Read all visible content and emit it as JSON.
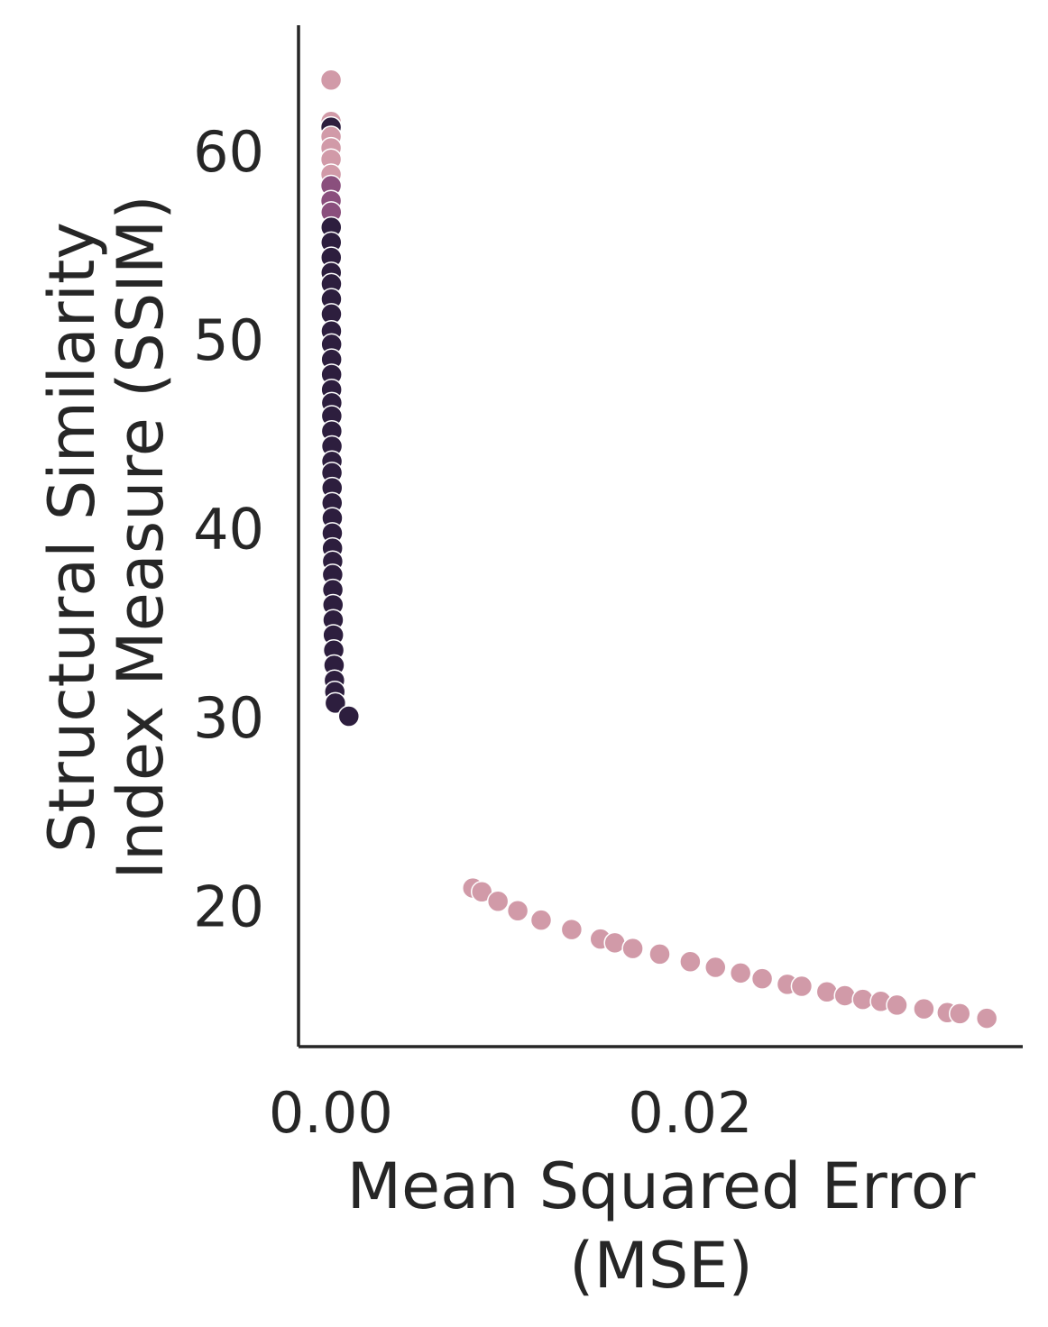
{
  "chart_data": {
    "type": "scatter",
    "title": "",
    "xlabel_lines": [
      "Mean Squared Error",
      "(MSE)"
    ],
    "ylabel_lines": [
      "Structural Similarity",
      "Index Measure (SSIM)"
    ],
    "xlim": [
      -0.0018,
      0.0385
    ],
    "ylim": [
      12.6,
      66.7
    ],
    "x_ticks": [
      0.0,
      0.02
    ],
    "x_tick_labels": [
      "0.00",
      "0.02"
    ],
    "y_ticks": [
      20,
      30,
      40,
      50,
      60
    ],
    "y_tick_labels": [
      "20",
      "30",
      "40",
      "50",
      "60"
    ],
    "grid": false,
    "legend": "none",
    "colors": {
      "light": "#d19aa8",
      "mid": "#8a4f7d",
      "dark": "#2d1e3e",
      "axis": "#262626"
    },
    "series": [
      {
        "color_key": "dark-to-light",
        "points": [
          {
            "x": 1e-05,
            "y": 63.8,
            "c": "light"
          },
          {
            "x": 1e-05,
            "y": 61.6,
            "c": "light"
          },
          {
            "x": 1e-05,
            "y": 61.3,
            "c": "dark"
          },
          {
            "x": 1e-05,
            "y": 60.8,
            "c": "light"
          },
          {
            "x": 1e-05,
            "y": 60.2,
            "c": "light"
          },
          {
            "x": 1e-05,
            "y": 59.6,
            "c": "light"
          },
          {
            "x": 1e-05,
            "y": 58.8,
            "c": "light"
          },
          {
            "x": 1e-05,
            "y": 58.2,
            "c": "mid"
          },
          {
            "x": 1e-05,
            "y": 57.4,
            "c": "mid"
          },
          {
            "x": 2e-05,
            "y": 56.8,
            "c": "mid"
          },
          {
            "x": 2e-05,
            "y": 56.0,
            "c": "dark"
          },
          {
            "x": 2e-05,
            "y": 55.2,
            "c": "dark"
          },
          {
            "x": 2e-05,
            "y": 54.4,
            "c": "dark"
          },
          {
            "x": 2e-05,
            "y": 53.6,
            "c": "dark"
          },
          {
            "x": 3e-05,
            "y": 53.0,
            "c": "dark"
          },
          {
            "x": 3e-05,
            "y": 52.2,
            "c": "dark"
          },
          {
            "x": 3e-05,
            "y": 51.4,
            "c": "dark"
          },
          {
            "x": 3e-05,
            "y": 50.5,
            "c": "dark"
          },
          {
            "x": 4e-05,
            "y": 49.8,
            "c": "dark"
          },
          {
            "x": 4e-05,
            "y": 49.0,
            "c": "dark"
          },
          {
            "x": 4e-05,
            "y": 48.2,
            "c": "dark"
          },
          {
            "x": 4e-05,
            "y": 47.4,
            "c": "dark"
          },
          {
            "x": 5e-05,
            "y": 46.7,
            "c": "dark"
          },
          {
            "x": 5e-05,
            "y": 46.0,
            "c": "dark"
          },
          {
            "x": 5e-05,
            "y": 45.2,
            "c": "dark"
          },
          {
            "x": 6e-05,
            "y": 44.4,
            "c": "dark"
          },
          {
            "x": 6e-05,
            "y": 43.6,
            "c": "dark"
          },
          {
            "x": 6e-05,
            "y": 43.0,
            "c": "dark"
          },
          {
            "x": 7e-05,
            "y": 42.2,
            "c": "dark"
          },
          {
            "x": 7e-05,
            "y": 41.4,
            "c": "dark"
          },
          {
            "x": 8e-05,
            "y": 40.6,
            "c": "dark"
          },
          {
            "x": 8e-05,
            "y": 39.8,
            "c": "dark"
          },
          {
            "x": 9e-05,
            "y": 39.0,
            "c": "dark"
          },
          {
            "x": 0.0001,
            "y": 38.3,
            "c": "dark"
          },
          {
            "x": 0.0001,
            "y": 37.6,
            "c": "dark"
          },
          {
            "x": 0.00011,
            "y": 36.8,
            "c": "dark"
          },
          {
            "x": 0.00012,
            "y": 36.0,
            "c": "dark"
          },
          {
            "x": 0.00013,
            "y": 35.2,
            "c": "dark"
          },
          {
            "x": 0.00014,
            "y": 34.4,
            "c": "dark"
          },
          {
            "x": 0.00016,
            "y": 33.6,
            "c": "dark"
          },
          {
            "x": 0.00018,
            "y": 32.8,
            "c": "dark"
          },
          {
            "x": 0.0002,
            "y": 32.0,
            "c": "dark"
          },
          {
            "x": 0.00022,
            "y": 31.4,
            "c": "dark"
          },
          {
            "x": 0.00025,
            "y": 30.8,
            "c": "dark"
          },
          {
            "x": 0.001,
            "y": 30.1,
            "c": "dark"
          },
          {
            "x": 0.0079,
            "y": 21.0,
            "c": "light"
          },
          {
            "x": 0.0084,
            "y": 20.8,
            "c": "light"
          },
          {
            "x": 0.0093,
            "y": 20.3,
            "c": "light"
          },
          {
            "x": 0.0104,
            "y": 19.8,
            "c": "light"
          },
          {
            "x": 0.0117,
            "y": 19.3,
            "c": "light"
          },
          {
            "x": 0.0134,
            "y": 18.8,
            "c": "light"
          },
          {
            "x": 0.015,
            "y": 18.3,
            "c": "light"
          },
          {
            "x": 0.0158,
            "y": 18.1,
            "c": "light"
          },
          {
            "x": 0.0168,
            "y": 17.8,
            "c": "light"
          },
          {
            "x": 0.0183,
            "y": 17.5,
            "c": "light"
          },
          {
            "x": 0.02,
            "y": 17.1,
            "c": "light"
          },
          {
            "x": 0.0214,
            "y": 16.8,
            "c": "light"
          },
          {
            "x": 0.0228,
            "y": 16.5,
            "c": "light"
          },
          {
            "x": 0.024,
            "y": 16.2,
            "c": "light"
          },
          {
            "x": 0.0254,
            "y": 15.9,
            "c": "light"
          },
          {
            "x": 0.0262,
            "y": 15.8,
            "c": "light"
          },
          {
            "x": 0.0276,
            "y": 15.5,
            "c": "light"
          },
          {
            "x": 0.0286,
            "y": 15.3,
            "c": "light"
          },
          {
            "x": 0.0296,
            "y": 15.1,
            "c": "light"
          },
          {
            "x": 0.0306,
            "y": 15.0,
            "c": "light"
          },
          {
            "x": 0.0315,
            "y": 14.8,
            "c": "light"
          },
          {
            "x": 0.033,
            "y": 14.6,
            "c": "light"
          },
          {
            "x": 0.0343,
            "y": 14.4,
            "c": "light"
          },
          {
            "x": 0.035,
            "y": 14.35,
            "c": "light"
          },
          {
            "x": 0.0365,
            "y": 14.1,
            "c": "light"
          }
        ]
      }
    ]
  }
}
